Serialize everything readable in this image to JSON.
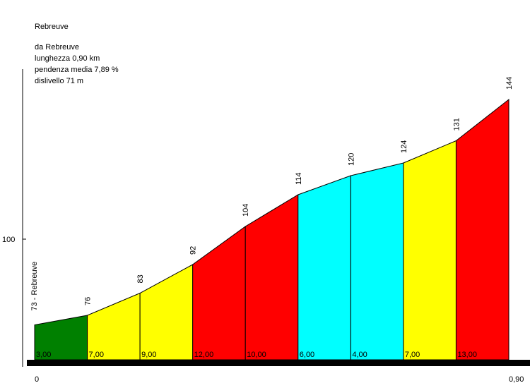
{
  "header": {
    "title": "Rebreuve",
    "from": "da Rebreuve",
    "length": "lunghezza 0,90 km",
    "avg_gradient": "pendenza media 7,89 %",
    "elevation_gain": "dislivello 71 m"
  },
  "chart_data": {
    "type": "area",
    "title": "Rebreuve",
    "xlim": [
      0,
      0.9
    ],
    "x_tick_labels": [
      "0",
      "0,90"
    ],
    "y_tick_values": [
      100
    ],
    "y_tick_labels": [
      "100"
    ],
    "grid": false,
    "start_label": "73 - Rebreuve",
    "segment_points": [
      {
        "x": 0.0,
        "elevation": 73
      },
      {
        "x": 0.1,
        "elevation": 76
      },
      {
        "x": 0.2,
        "elevation": 83
      },
      {
        "x": 0.3,
        "elevation": 92
      },
      {
        "x": 0.4,
        "elevation": 104
      },
      {
        "x": 0.5,
        "elevation": 114
      },
      {
        "x": 0.6,
        "elevation": 120
      },
      {
        "x": 0.7,
        "elevation": 124
      },
      {
        "x": 0.8,
        "elevation": 131
      },
      {
        "x": 0.9,
        "elevation": 144
      }
    ],
    "elevation_labels": [
      "76",
      "83",
      "92",
      "104",
      "114",
      "120",
      "124",
      "131",
      "144"
    ],
    "segments": [
      {
        "gradient": "3,00",
        "color": "#008000"
      },
      {
        "gradient": "7,00",
        "color": "#ffff00"
      },
      {
        "gradient": "9,00",
        "color": "#ffff00"
      },
      {
        "gradient": "12,00",
        "color": "#ff0000"
      },
      {
        "gradient": "10,00",
        "color": "#ff0000"
      },
      {
        "gradient": "6,00",
        "color": "#00ffff"
      },
      {
        "gradient": "4,00",
        "color": "#00ffff"
      },
      {
        "gradient": "7,00",
        "color": "#ffff00"
      },
      {
        "gradient": "13,00",
        "color": "#ff0000"
      }
    ]
  }
}
